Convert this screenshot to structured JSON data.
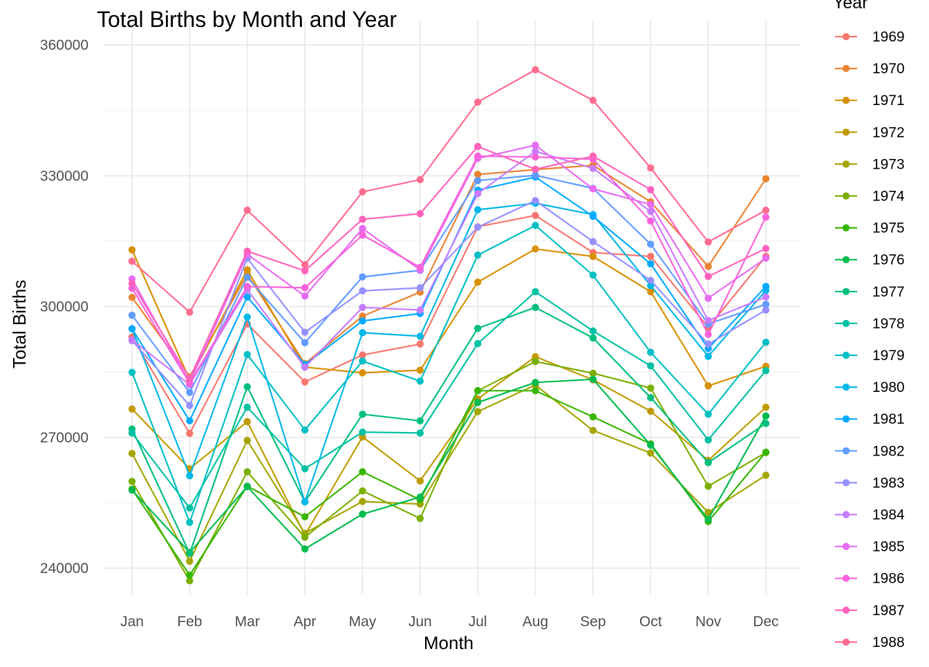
{
  "chart_data": {
    "type": "line",
    "title": "Total Births by Month and Year",
    "xlabel": "Month",
    "ylabel": "Total Births",
    "ylim": [
      230000,
      365000
    ],
    "yticks": [
      240000,
      270000,
      300000,
      330000,
      360000
    ],
    "grid": true,
    "legend": {
      "title": "Year",
      "position": "right"
    },
    "categories": [
      "Jan",
      "Feb",
      "Mar",
      "Apr",
      "May",
      "Jun",
      "Jul",
      "Aug",
      "Sep",
      "Oct",
      "Nov",
      "Dec"
    ],
    "series": [
      {
        "name": "1969",
        "color": "#F8766D",
        "values": [
          293000,
          270900,
          296000,
          282700,
          288900,
          291400,
          318300,
          320900,
          312400,
          311500,
          295200,
          311500
        ]
      },
      {
        "name": "1970",
        "color": "#EA8331",
        "values": [
          302100,
          283900,
          307400,
          286900,
          297800,
          303300,
          330300,
          331400,
          332400,
          324000,
          309200,
          329300
        ]
      },
      {
        "name": "1971",
        "color": "#D89000",
        "values": [
          313000,
          283200,
          308400,
          286100,
          284800,
          285400,
          305600,
          313200,
          311500,
          303400,
          281800,
          286300
        ]
      },
      {
        "name": "1972",
        "color": "#C09B00",
        "values": [
          276500,
          262800,
          273600,
          247600,
          270100,
          260000,
          278800,
          288500,
          283200,
          276000,
          264700,
          276900
        ]
      },
      {
        "name": "1973",
        "color": "#A3A500",
        "values": [
          266300,
          241600,
          269300,
          248000,
          255300,
          254700,
          275900,
          282000,
          271600,
          266400,
          252800,
          261300
        ]
      },
      {
        "name": "1974",
        "color": "#7CAE00",
        "values": [
          259900,
          237100,
          262100,
          247100,
          257700,
          251400,
          280700,
          287400,
          284700,
          281300,
          258800,
          266500
        ]
      },
      {
        "name": "1975",
        "color": "#39B600",
        "values": [
          258100,
          238400,
          258800,
          251800,
          262100,
          255700,
          280700,
          280700,
          274700,
          268500,
          250700,
          266600
        ]
      },
      {
        "name": "1976",
        "color": "#00BB4E",
        "values": [
          257900,
          243600,
          258700,
          244400,
          252400,
          256300,
          278000,
          282600,
          283300,
          268200,
          251200,
          274900
        ]
      },
      {
        "name": "1977",
        "color": "#00BF7D",
        "values": [
          271900,
          243400,
          281600,
          255200,
          275300,
          273800,
          295000,
          299800,
          292800,
          279100,
          264200,
          273200
        ]
      },
      {
        "name": "1978",
        "color": "#00C1A3",
        "values": [
          271000,
          253800,
          276900,
          262800,
          271200,
          271000,
          291500,
          303400,
          294400,
          286400,
          269400,
          285300
        ]
      },
      {
        "name": "1979",
        "color": "#00BFC4",
        "values": [
          284900,
          250500,
          289000,
          271700,
          287500,
          282900,
          311800,
          318600,
          307200,
          289500,
          275300,
          291800
        ]
      },
      {
        "name": "1980",
        "color": "#00B8E7",
        "values": [
          294900,
          261200,
          297600,
          255200,
          294000,
          293200,
          322200,
          323700,
          321100,
          304800,
          288600,
          303700
        ]
      },
      {
        "name": "1981",
        "color": "#00A9FF",
        "values": [
          294900,
          273800,
          302200,
          286700,
          296700,
          298400,
          326700,
          329700,
          320700,
          309800,
          290400,
          304600
        ]
      },
      {
        "name": "1982",
        "color": "#619CFF",
        "values": [
          298000,
          280300,
          306700,
          291700,
          306800,
          308300,
          328900,
          330100,
          327100,
          314300,
          296000,
          300500
        ]
      },
      {
        "name": "1983",
        "color": "#9590FF",
        "values": [
          292200,
          277300,
          311100,
          294100,
          303600,
          304300,
          318200,
          324300,
          314900,
          306000,
          291400,
          299200
        ]
      },
      {
        "name": "1984",
        "color": "#C77CFF",
        "values": [
          292300,
          282100,
          303900,
          286100,
          299800,
          299200,
          325900,
          335600,
          331700,
          321800,
          296800,
          302200
        ]
      },
      {
        "name": "1985",
        "color": "#E76BF3",
        "values": [
          306300,
          282500,
          312000,
          302400,
          317900,
          308400,
          334000,
          337000,
          327000,
          323400,
          301900,
          311100
        ]
      },
      {
        "name": "1986",
        "color": "#FA62DB",
        "values": [
          304200,
          282400,
          304600,
          304300,
          316400,
          309000,
          334500,
          334300,
          333800,
          319600,
          293600,
          320500
        ]
      },
      {
        "name": "1987",
        "color": "#FF62BC",
        "values": [
          305300,
          283500,
          312700,
          308200,
          320000,
          321300,
          336700,
          331500,
          334500,
          326800,
          306900,
          313300
        ]
      },
      {
        "name": "1988",
        "color": "#FF6C91",
        "values": [
          310400,
          298700,
          322100,
          309600,
          326300,
          329100,
          346900,
          354300,
          347300,
          331800,
          314800,
          322100
        ]
      }
    ]
  }
}
